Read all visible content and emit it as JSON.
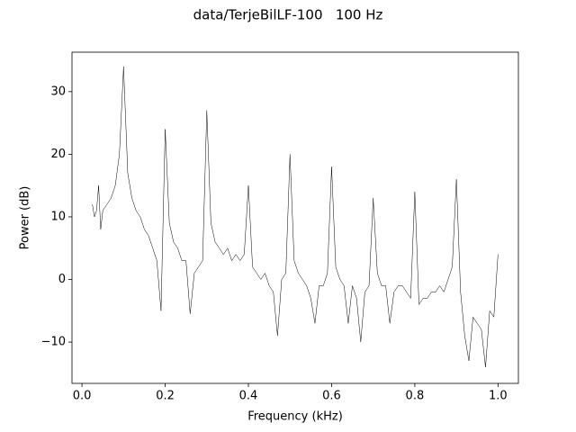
{
  "chart_data": {
    "type": "line",
    "title": "data/TerjeBilLF-100   100 Hz",
    "xlabel": "Frequency (kHz)",
    "ylabel": "Power (dB)",
    "x": [
      0.025,
      0.03,
      0.035,
      0.04,
      0.045,
      0.05,
      0.06,
      0.07,
      0.08,
      0.09,
      0.1,
      0.11,
      0.12,
      0.13,
      0.14,
      0.15,
      0.16,
      0.17,
      0.18,
      0.19,
      0.2,
      0.21,
      0.22,
      0.23,
      0.24,
      0.25,
      0.26,
      0.27,
      0.28,
      0.29,
      0.3,
      0.31,
      0.32,
      0.33,
      0.34,
      0.35,
      0.36,
      0.37,
      0.38,
      0.39,
      0.4,
      0.41,
      0.42,
      0.43,
      0.44,
      0.45,
      0.46,
      0.47,
      0.48,
      0.49,
      0.5,
      0.51,
      0.52,
      0.53,
      0.54,
      0.55,
      0.56,
      0.57,
      0.58,
      0.59,
      0.6,
      0.61,
      0.62,
      0.63,
      0.64,
      0.65,
      0.66,
      0.67,
      0.68,
      0.69,
      0.7,
      0.71,
      0.72,
      0.73,
      0.74,
      0.75,
      0.76,
      0.77,
      0.78,
      0.79,
      0.8,
      0.81,
      0.82,
      0.83,
      0.84,
      0.85,
      0.86,
      0.87,
      0.88,
      0.89,
      0.9,
      0.91,
      0.92,
      0.93,
      0.94,
      0.95,
      0.96,
      0.97,
      0.98,
      0.99,
      1.0
    ],
    "values": [
      12,
      10,
      11,
      15,
      8,
      11,
      12,
      13,
      15,
      20,
      34,
      17,
      13,
      11,
      10,
      8,
      7,
      5,
      3,
      -5,
      24,
      9,
      6,
      5,
      3,
      3,
      -5.5,
      1,
      2,
      3,
      27,
      9,
      6,
      5,
      4,
      5,
      3,
      4,
      3,
      4,
      15,
      2,
      1,
      0,
      1,
      -1,
      -2,
      -9,
      0,
      1,
      20,
      3,
      1,
      0,
      -1,
      -3,
      -7,
      -1,
      -1,
      1,
      18,
      2,
      0,
      -1,
      -7,
      -1,
      -3,
      -10,
      -2,
      -1,
      13,
      1,
      -1,
      -1,
      -7,
      -2,
      -1,
      -1,
      -2,
      -3,
      14,
      -4,
      -3,
      -3,
      -2,
      -2,
      -1,
      -2,
      0,
      2,
      16,
      -2,
      -9,
      -13,
      -6,
      -7,
      -8,
      -14,
      -5,
      -6,
      4
    ],
    "color": "#000000",
    "xlim": [
      -0.024,
      1.049
    ],
    "ylim": [
      -16.6,
      36.3
    ],
    "xticks": [
      {
        "value": 0,
        "label": "0.0"
      },
      0.2,
      0.4,
      0.6,
      0.8,
      {
        "value": 1,
        "label": "1.0"
      }
    ],
    "yticks": [
      {
        "value": -10,
        "label": "−10"
      },
      0,
      10,
      20,
      30
    ]
  }
}
